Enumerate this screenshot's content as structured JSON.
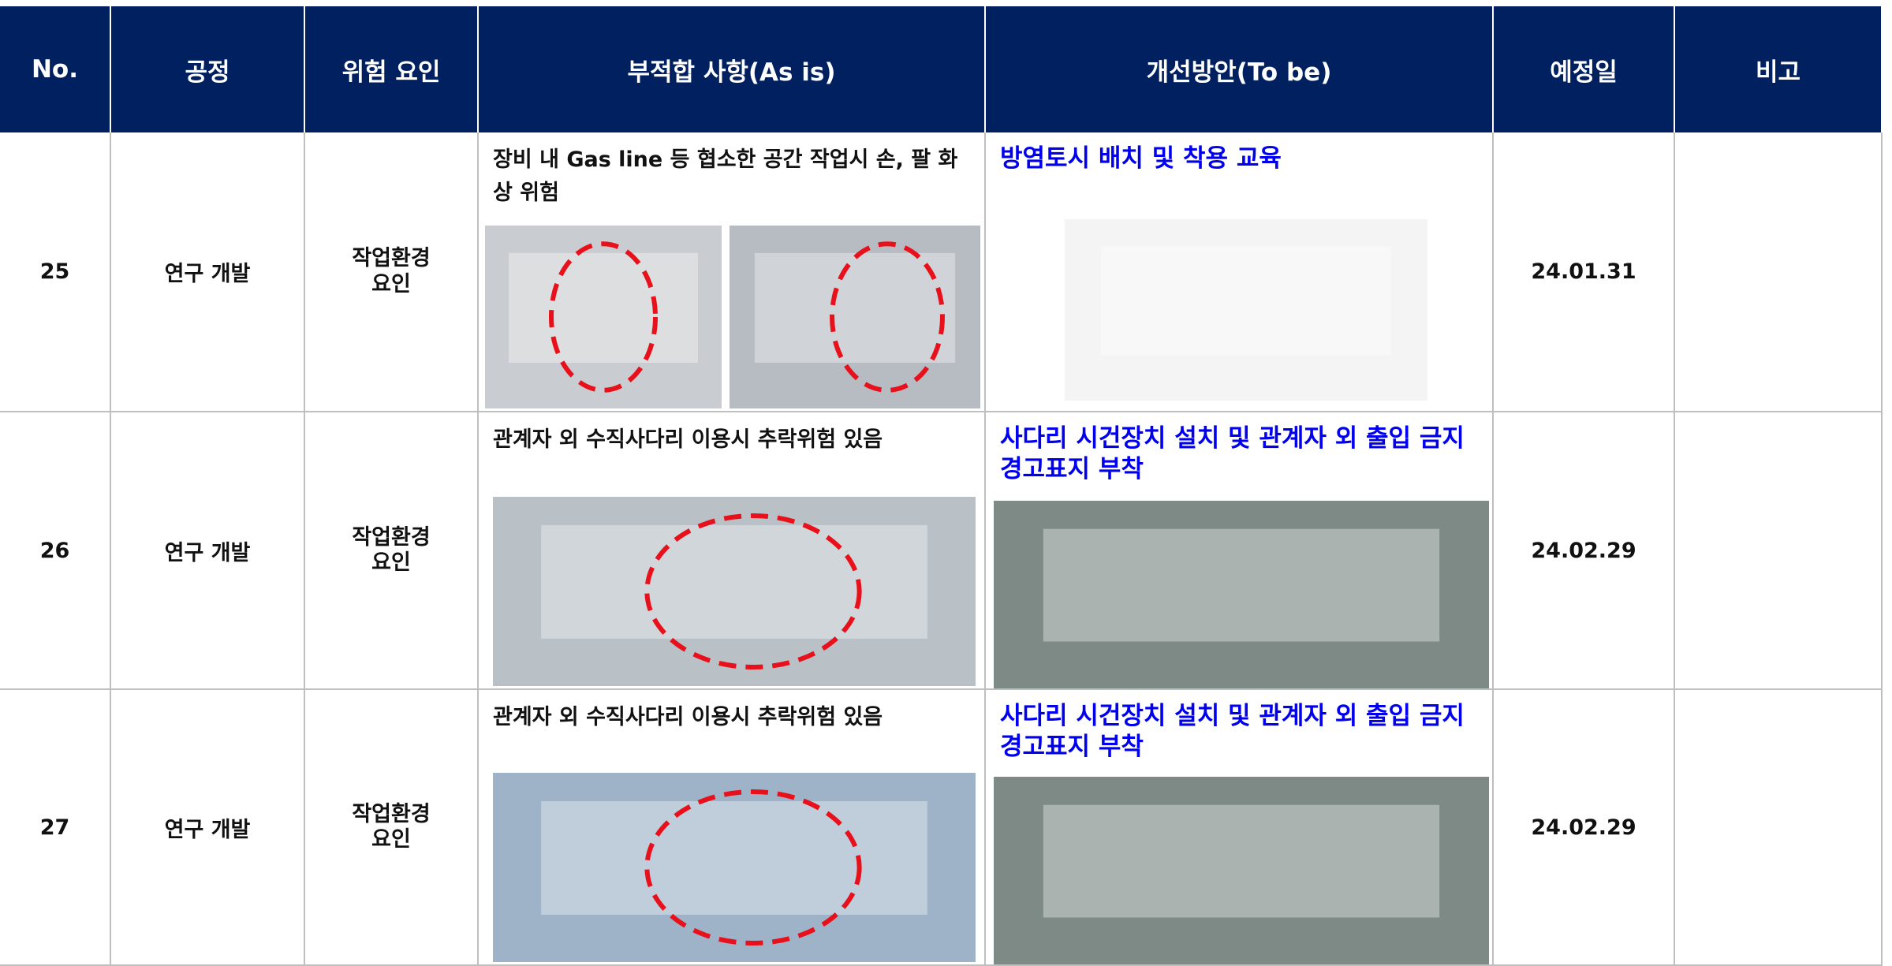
{
  "table": {
    "header": [
      "No.",
      "공정",
      "위험 요인",
      "부적합 사항(As is)",
      "개선방안(To be)",
      "예정일",
      "비고"
    ],
    "rows": [
      {
        "no": "25",
        "process": "연구 개발",
        "hazard": "작업환경 요인",
        "as_is": "장비 내 Gas line 등 협소한 공간 작업시 손, 팔 화상 위험",
        "to_be": "방염토시 배치 및 착용 교육",
        "date": "24.01.31"
      },
      {
        "no": "26",
        "process": "연구 개발",
        "hazard": "작업환경 요인",
        "as_is": "관계자 외 수직사다리 이용시 추락위험 있음",
        "to_be": "사다리 시건장치 설치 및 관계자 외 출입 금지 경고표지 부착",
        "date": "24.02.29"
      },
      {
        "no": "27",
        "process": "연구 개발",
        "hazard": "작업환경 요인",
        "as_is": "관계자 외 수직사다리 이용시 추락위험 있음",
        "to_be": "사다리 시건장치 설치 및 관계자 외 출입 금지 경고표지 부착",
        "date": "24.02.29"
      }
    ]
  }
}
